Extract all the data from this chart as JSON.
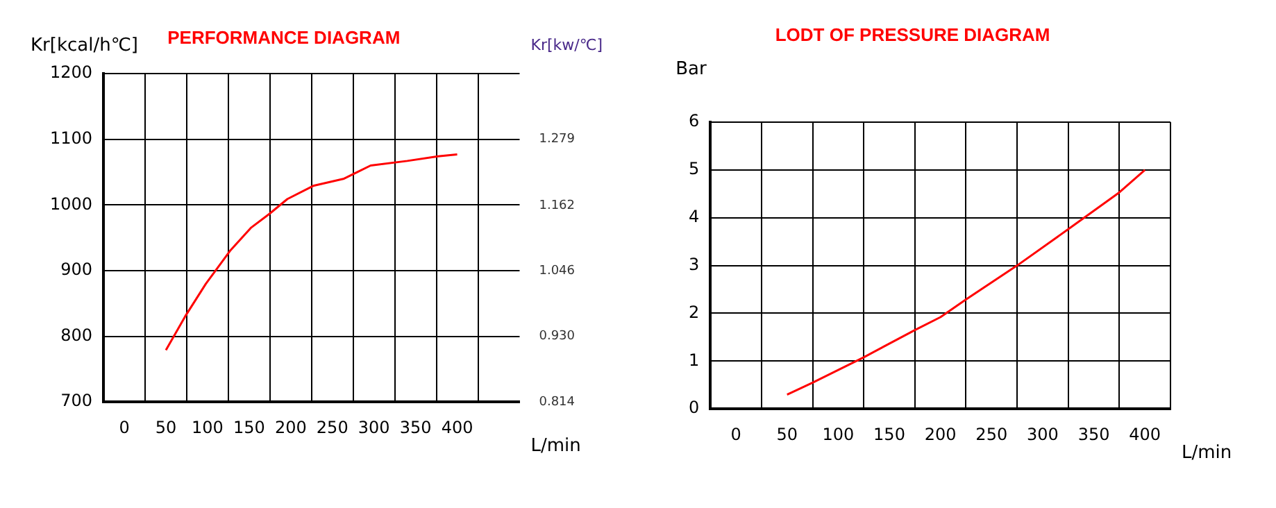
{
  "chart_data": [
    {
      "type": "line",
      "title": "PERFORMANCE DIAGRAM",
      "xlabel": "L/min",
      "ylabel": "Kr[kcal/h℃]",
      "y2label": "Kr[kw/℃]",
      "xlim": [
        -25,
        475
      ],
      "xticks": [
        0,
        {
          "value": 25,
          "label": null
        },
        50,
        {
          "value": 75,
          "label": null
        },
        100,
        {
          "value": 125,
          "label": null
        },
        150,
        {
          "value": 175,
          "label": null
        },
        200,
        {
          "value": 225,
          "label": null
        },
        250,
        {
          "value": 275,
          "label": null
        },
        300,
        {
          "value": 325,
          "label": null
        },
        350,
        {
          "value": 375,
          "label": null
        },
        400,
        {
          "value": 425,
          "label": null
        }
      ],
      "ylim": [
        700,
        1200
      ],
      "yticks": [
        700,
        800,
        900,
        1000,
        1100,
        1200
      ],
      "y2lim": [
        0.814,
        1.3955
      ],
      "y2ticks": [
        0.814,
        {
          "value": 0.93,
          "label": "0.930"
        },
        1.046,
        1.162,
        1.279
      ],
      "x": [
        50,
        73,
        98,
        127,
        152,
        174,
        196,
        227,
        264,
        296,
        340,
        377,
        400
      ],
      "values": [
        779,
        830,
        880,
        930,
        965,
        986,
        1009,
        1029,
        1040,
        1060,
        1067,
        1074,
        1077
      ],
      "color": "#ff0000",
      "grid": true
    },
    {
      "type": "line",
      "title": "LODT OF PRESSURE DIAGRAM",
      "xlabel": "L/min",
      "ylabel": "Bar",
      "xlim": [
        -25,
        425
      ],
      "xticks": [
        0,
        {
          "value": 25,
          "label": null
        },
        50,
        {
          "value": 75,
          "label": null
        },
        100,
        {
          "value": 125,
          "label": null
        },
        150,
        {
          "value": 175,
          "label": null
        },
        200,
        {
          "value": 225,
          "label": null
        },
        250,
        {
          "value": 275,
          "label": null
        },
        300,
        {
          "value": 325,
          "label": null
        },
        350,
        {
          "value": 375,
          "label": null
        },
        400,
        {
          "value": 425,
          "label": null
        }
      ],
      "ylim": [
        0,
        6
      ],
      "yticks": [
        0,
        1,
        2,
        3,
        4,
        5,
        6
      ],
      "x": [
        50,
        75,
        125,
        175,
        200,
        225,
        275,
        325,
        375,
        400
      ],
      "values": [
        0.3,
        0.55,
        1.08,
        1.65,
        1.92,
        2.29,
        3.0,
        3.76,
        4.53,
        5.0
      ],
      "color": "#ff0000",
      "grid": true
    }
  ]
}
